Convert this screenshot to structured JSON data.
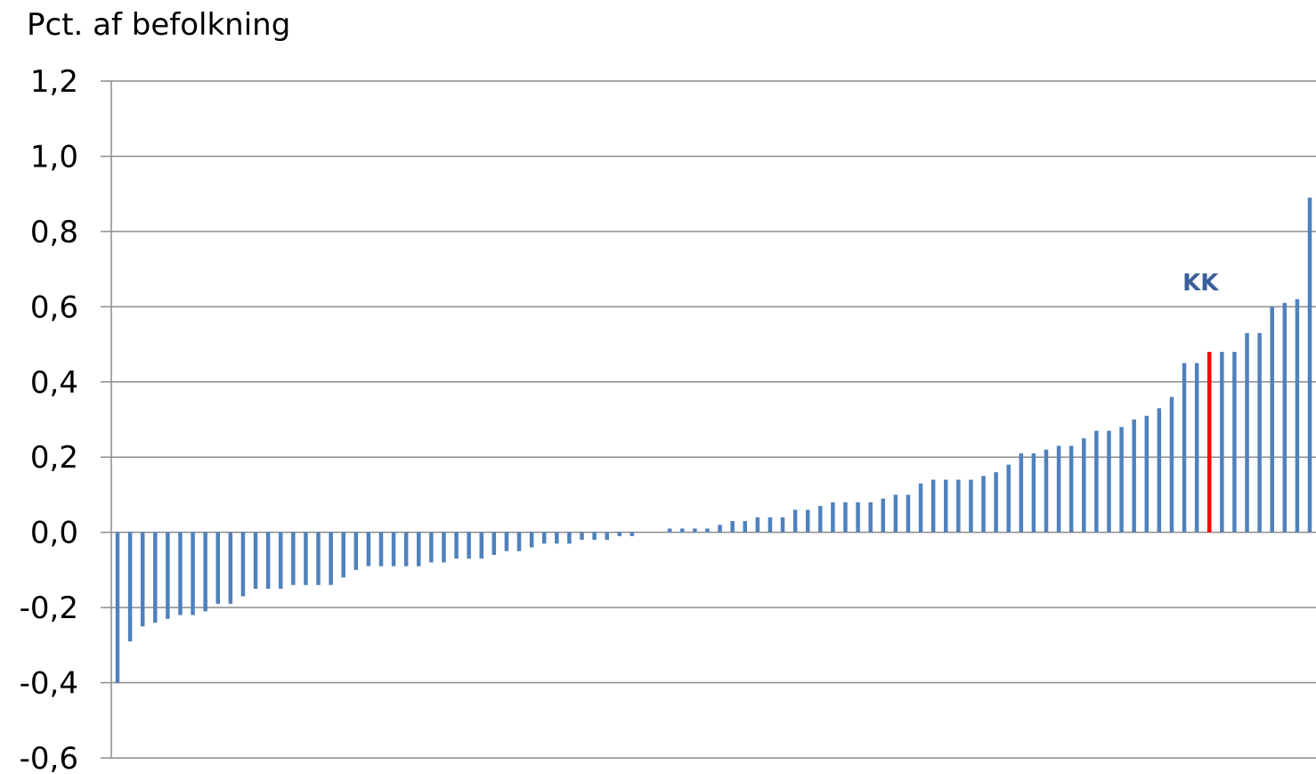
{
  "chart_data": {
    "type": "bar",
    "title": "",
    "xlabel": "",
    "ylabel": "Pct. af befolkning",
    "ylim": [
      -0.6,
      1.2
    ],
    "yticks": [
      -0.6,
      -0.4,
      -0.2,
      0.0,
      0.2,
      0.4,
      0.6,
      0.8,
      1.0,
      1.2
    ],
    "ytick_labels": [
      "-0,6",
      "-0,4",
      "-0,2",
      "0,0",
      "0,2",
      "0,4",
      "0,6",
      "0,8",
      "1,0",
      "1,2"
    ],
    "grid": true,
    "colors": {
      "default": "#4f81bd",
      "highlight": "#ff0000",
      "annotation": "#3a5f9a"
    },
    "highlight_index": 87,
    "annotation": {
      "text": "KK",
      "index": 87
    },
    "values": [
      -0.4,
      -0.29,
      -0.25,
      -0.24,
      -0.23,
      -0.22,
      -0.22,
      -0.21,
      -0.19,
      -0.19,
      -0.17,
      -0.15,
      -0.15,
      -0.15,
      -0.14,
      -0.14,
      -0.14,
      -0.14,
      -0.12,
      -0.1,
      -0.09,
      -0.09,
      -0.09,
      -0.09,
      -0.09,
      -0.08,
      -0.08,
      -0.07,
      -0.07,
      -0.07,
      -0.06,
      -0.05,
      -0.05,
      -0.04,
      -0.03,
      -0.03,
      -0.03,
      -0.02,
      -0.02,
      -0.02,
      -0.01,
      -0.01,
      0.0,
      0.0,
      0.01,
      0.01,
      0.01,
      0.01,
      0.02,
      0.03,
      0.03,
      0.04,
      0.04,
      0.04,
      0.06,
      0.06,
      0.07,
      0.08,
      0.08,
      0.08,
      0.08,
      0.09,
      0.1,
      0.1,
      0.13,
      0.14,
      0.14,
      0.14,
      0.14,
      0.15,
      0.16,
      0.18,
      0.21,
      0.21,
      0.22,
      0.23,
      0.23,
      0.25,
      0.27,
      0.27,
      0.28,
      0.3,
      0.31,
      0.33,
      0.36,
      0.45,
      0.45,
      0.48,
      0.48,
      0.48,
      0.53,
      0.53,
      0.6,
      0.61,
      0.62,
      0.89
    ]
  }
}
